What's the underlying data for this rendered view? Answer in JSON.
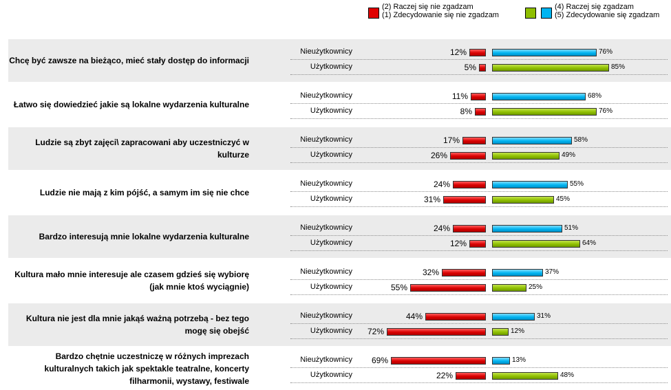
{
  "legend": {
    "negative": {
      "line1": "(2) Raczej się nie zgadzam",
      "line2": "(1) Zdecydowanie się nie zgadzam",
      "color": "#e00000"
    },
    "positive": {
      "line1": "(4) Raczej się zgadzam",
      "line2": "(5) Zdecydowanie się zgadzam",
      "color_nonusers": "#00b4f0",
      "color_users": "#8fbf00"
    }
  },
  "chart_data": {
    "type": "bar",
    "orientation": "horizontal-diverging",
    "unit": "%",
    "groups": [
      "Nieużytkownicy",
      "Użytkownicy"
    ],
    "rows": [
      {
        "statement": "Chcę być zawsze na bieżąco, mieć stały dostęp do informacji",
        "neg": [
          12,
          5
        ],
        "pos": [
          76,
          85
        ]
      },
      {
        "statement": "Łatwo się dowiedzieć jakie są lokalne wydarzenia kulturalne",
        "neg": [
          11,
          8
        ],
        "pos": [
          68,
          76
        ]
      },
      {
        "statement": "Ludzie są zbyt zajęci\\ zapracowani aby uczestniczyć w kulturze",
        "neg": [
          17,
          26
        ],
        "pos": [
          58,
          49
        ]
      },
      {
        "statement": "Ludzie nie mają z kim pójść, a samym im się nie chce",
        "neg": [
          24,
          31
        ],
        "pos": [
          55,
          45
        ]
      },
      {
        "statement": "Bardzo interesują mnie lokalne wydarzenia kulturalne",
        "neg": [
          24,
          12
        ],
        "pos": [
          51,
          64
        ]
      },
      {
        "statement": "Kultura mało mnie interesuje ale czasem gdzieś się wybiorę (jak mnie ktoś wyciągnie)",
        "neg": [
          32,
          55
        ],
        "pos": [
          37,
          25
        ]
      },
      {
        "statement": "Kultura nie jest dla mnie jakąś ważną potrzebą - bez tego mogę się obejść",
        "neg": [
          44,
          72
        ],
        "pos": [
          31,
          12
        ]
      },
      {
        "statement": "Bardzo chętnie uczestniczę w różnych imprezach kulturalnych takich jak spektakle teatralne, koncerty filharmonii, wystawy, festiwale",
        "neg": [
          69,
          22
        ],
        "pos": [
          13,
          48
        ]
      }
    ]
  }
}
